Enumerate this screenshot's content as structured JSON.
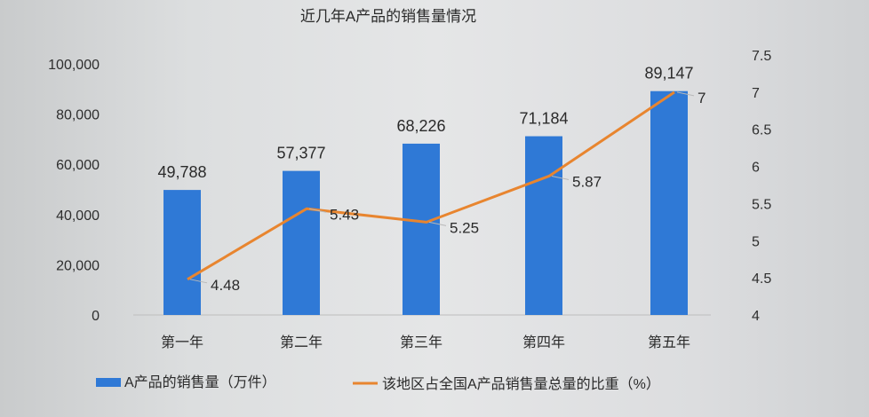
{
  "chart_data": {
    "type": "bar",
    "title": "近几年A产品的销售量情况",
    "categories": [
      "第一年",
      "第二年",
      "第三年",
      "第四年",
      "第五年"
    ],
    "series": [
      {
        "name": "A产品的销售量（万件）",
        "type": "bar",
        "axis": "left",
        "values": [
          49788,
          57377,
          68226,
          71184,
          89147
        ],
        "labels": [
          "49,788",
          "57,377",
          "68,226",
          "71,184",
          "89,147"
        ]
      },
      {
        "name": "该地区占全国A产品销售量总量的比重（%）",
        "type": "line",
        "axis": "right",
        "values": [
          4.48,
          5.43,
          5.25,
          5.87,
          7
        ],
        "labels": [
          "4.48",
          "5.43",
          "5.25",
          "5.87",
          "7"
        ]
      }
    ],
    "y_left": {
      "min": 0,
      "max": 100000,
      "ticks": [
        0,
        20000,
        40000,
        60000,
        80000,
        100000
      ],
      "tick_labels": [
        "0",
        "20,000",
        "40,000",
        "60,000",
        "80,000",
        "100,000"
      ]
    },
    "y_right": {
      "min": 4,
      "max": 7.5,
      "ticks": [
        4,
        4.5,
        5,
        5.5,
        6,
        6.5,
        7,
        7.5
      ],
      "tick_labels": [
        "4",
        "4.5",
        "5",
        "5.5",
        "6",
        "6.5",
        "7",
        "7.5"
      ]
    },
    "grid": false,
    "legend": "bottom",
    "colors": {
      "bar": "#2f79d6",
      "line": "#e8852f"
    }
  }
}
